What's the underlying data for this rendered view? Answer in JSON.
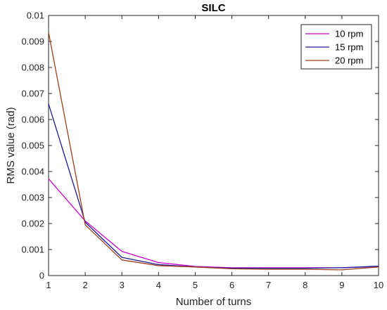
{
  "chart_data": {
    "type": "line",
    "title": "SILC",
    "xlabel": "Number of turns",
    "ylabel": "RMS value (rad)",
    "xlim": [
      1,
      10
    ],
    "ylim": [
      0,
      0.01
    ],
    "x_ticks": [
      "1",
      "2",
      "3",
      "4",
      "5",
      "6",
      "7",
      "8",
      "9",
      "10"
    ],
    "y_ticks": [
      "0",
      "0.001",
      "0.002",
      "0.003",
      "0.004",
      "0.005",
      "0.006",
      "0.007",
      "0.008",
      "0.009",
      "0.01"
    ],
    "y_tick_values": [
      0,
      0.001,
      0.002,
      0.003,
      0.004,
      0.005,
      0.006,
      0.007,
      0.008,
      0.009,
      0.01
    ],
    "grid": false,
    "legend_position": "top-right",
    "x": [
      1,
      2,
      3,
      4,
      5,
      6,
      7,
      8,
      9,
      10
    ],
    "series": [
      {
        "name": "10 rpm",
        "color": "#cc00cc",
        "values": [
          0.00372,
          0.0021,
          0.00093,
          0.0005,
          0.00035,
          0.0003,
          0.0003,
          0.0003,
          0.0003,
          0.00035
        ]
      },
      {
        "name": "15 rpm",
        "color": "#1a1a99",
        "values": [
          0.0066,
          0.00205,
          0.0007,
          0.00042,
          0.00033,
          0.00028,
          0.00028,
          0.00028,
          0.0003,
          0.00036
        ]
      },
      {
        "name": "20 rpm",
        "color": "#a0401a",
        "values": [
          0.00935,
          0.00195,
          0.0006,
          0.00038,
          0.00033,
          0.00026,
          0.00024,
          0.00024,
          0.00022,
          0.00033
        ]
      }
    ]
  }
}
